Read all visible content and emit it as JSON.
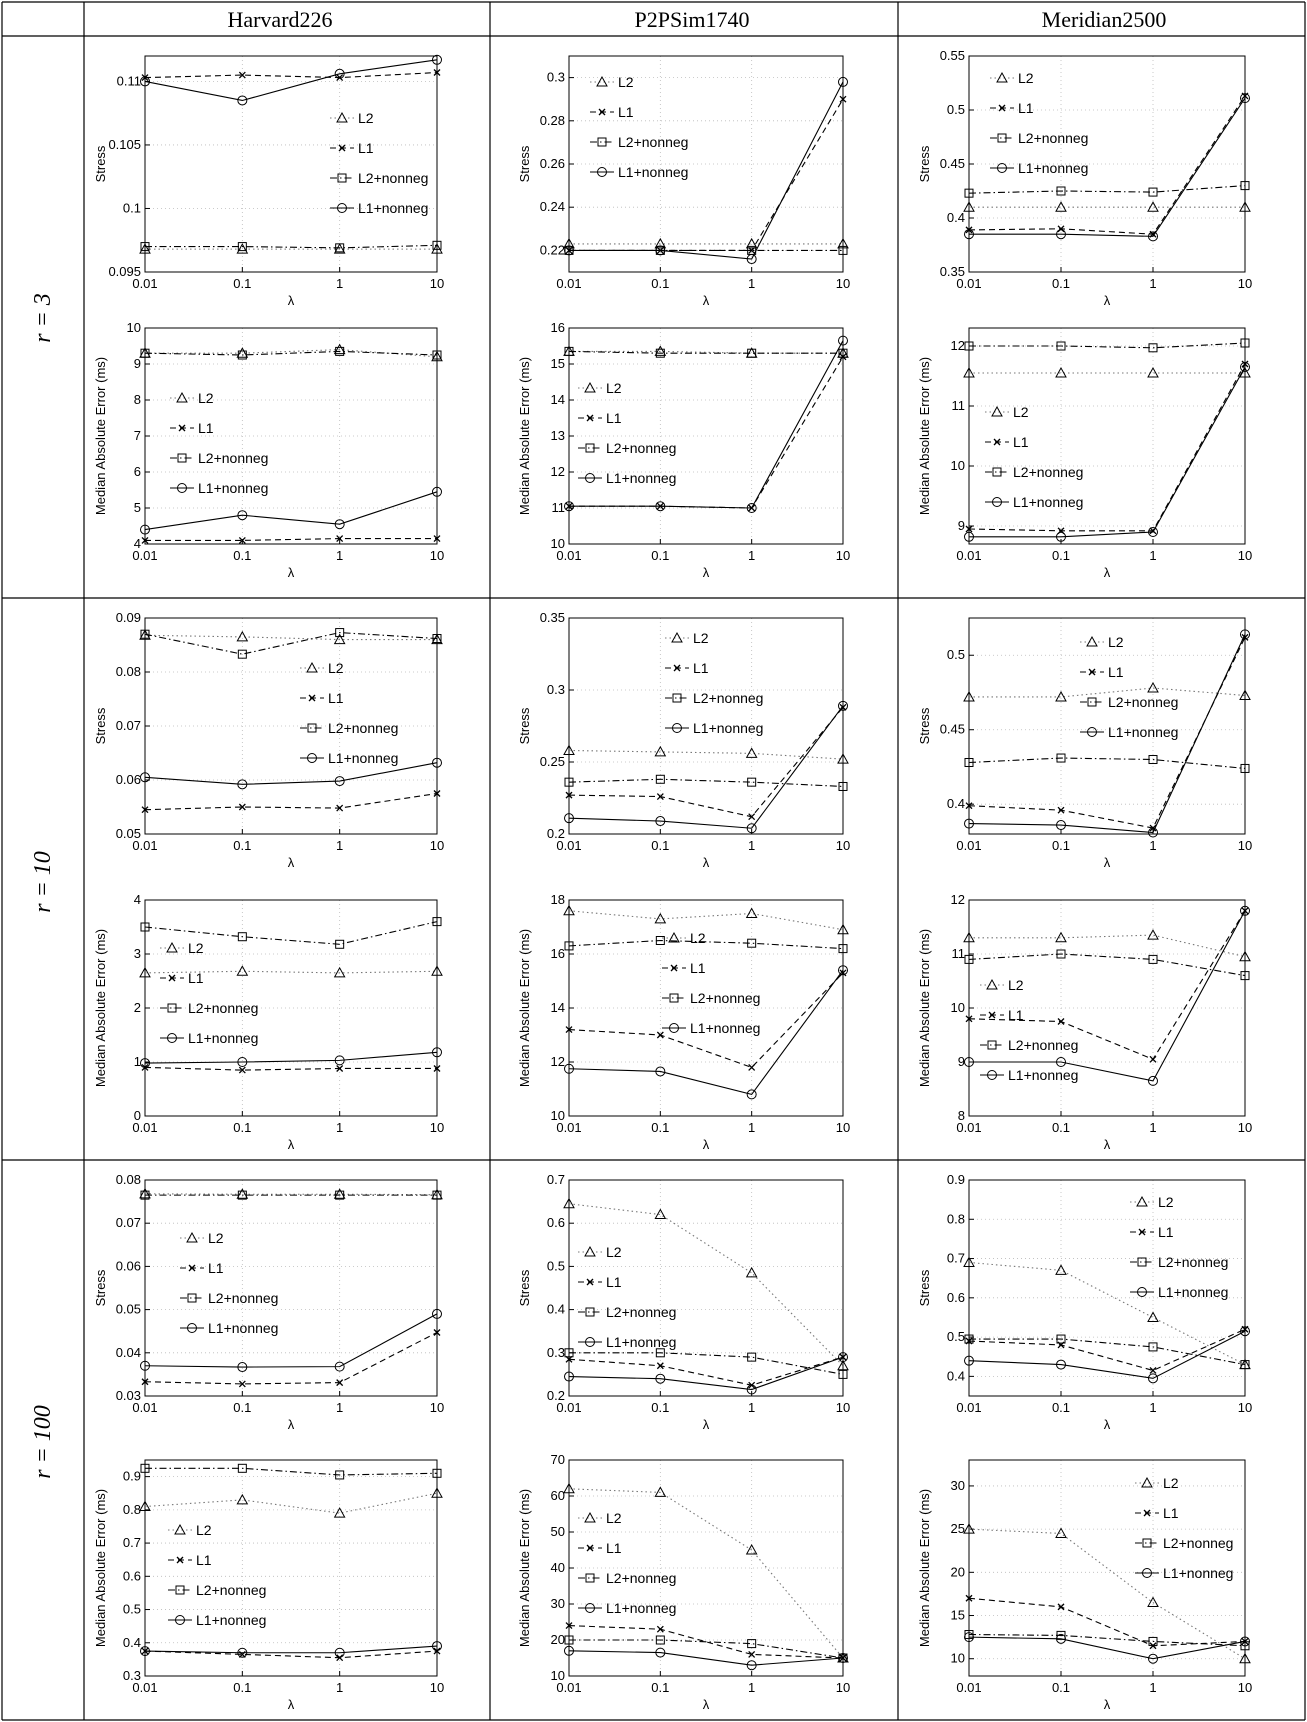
{
  "table": {
    "columns": [
      "Harvard226",
      "P2PSim1740",
      "Meridian2500"
    ],
    "rows": [
      "r = 3",
      "r = 10",
      "r = 100"
    ]
  },
  "legend_labels": [
    "L2",
    "L1",
    "L2+nonneg",
    "L1+nonneg"
  ],
  "xlabel": "λ",
  "x_ticks": [
    "0.01",
    "0.1",
    "1",
    "10"
  ],
  "chart_data": [
    {
      "type": "line",
      "title": "",
      "xlabel": "λ",
      "ylabel": "Stress",
      "xscale": "log",
      "x": [
        0.01,
        0.1,
        1,
        10
      ],
      "ylim": [
        0.095,
        0.112
      ],
      "yticks": [
        0.095,
        0.1,
        0.105,
        0.11
      ],
      "series": [
        {
          "name": "L2",
          "values": [
            0.0968,
            0.0968,
            0.0968,
            0.0968
          ]
        },
        {
          "name": "L1",
          "values": [
            0.1103,
            0.1105,
            0.1103,
            0.1107
          ]
        },
        {
          "name": "L2+nonneg",
          "values": [
            0.097,
            0.097,
            0.0969,
            0.0971
          ]
        },
        {
          "name": "L1+nonneg",
          "values": [
            0.11,
            0.1085,
            0.1106,
            0.1117
          ]
        }
      ]
    },
    {
      "type": "line",
      "title": "",
      "xlabel": "λ",
      "ylabel": "Stress",
      "xscale": "log",
      "x": [
        0.01,
        0.1,
        1,
        10
      ],
      "ylim": [
        0.21,
        0.31
      ],
      "yticks": [
        0.22,
        0.24,
        0.26,
        0.28,
        0.3
      ],
      "series": [
        {
          "name": "L2",
          "values": [
            0.223,
            0.223,
            0.223,
            0.223
          ]
        },
        {
          "name": "L1",
          "values": [
            0.22,
            0.22,
            0.22,
            0.29
          ]
        },
        {
          "name": "L2+nonneg",
          "values": [
            0.22,
            0.22,
            0.22,
            0.22
          ]
        },
        {
          "name": "L1+nonneg",
          "values": [
            0.22,
            0.22,
            0.216,
            0.298
          ]
        }
      ]
    },
    {
      "type": "line",
      "title": "",
      "xlabel": "λ",
      "ylabel": "Stress",
      "xscale": "log",
      "x": [
        0.01,
        0.1,
        1,
        10
      ],
      "ylim": [
        0.35,
        0.55
      ],
      "yticks": [
        0.35,
        0.4,
        0.45,
        0.5,
        0.55
      ],
      "series": [
        {
          "name": "L2",
          "values": [
            0.41,
            0.41,
            0.41,
            0.41
          ]
        },
        {
          "name": "L1",
          "values": [
            0.389,
            0.39,
            0.385,
            0.513
          ]
        },
        {
          "name": "L2+nonneg",
          "values": [
            0.423,
            0.425,
            0.424,
            0.43
          ]
        },
        {
          "name": "L1+nonneg",
          "values": [
            0.385,
            0.385,
            0.383,
            0.511
          ]
        }
      ]
    },
    {
      "type": "line",
      "title": "",
      "xlabel": "λ",
      "ylabel": "Median Absolute Error (ms)",
      "xscale": "log",
      "x": [
        0.01,
        0.1,
        1,
        10
      ],
      "ylim": [
        4,
        10
      ],
      "yticks": [
        4,
        5,
        6,
        7,
        8,
        9,
        10
      ],
      "series": [
        {
          "name": "L2",
          "values": [
            9.3,
            9.3,
            9.4,
            9.2
          ]
        },
        {
          "name": "L1",
          "values": [
            4.1,
            4.1,
            4.15,
            4.15
          ]
        },
        {
          "name": "L2+nonneg",
          "values": [
            9.3,
            9.25,
            9.35,
            9.25
          ]
        },
        {
          "name": "L1+nonneg",
          "values": [
            4.4,
            4.8,
            4.55,
            5.45
          ]
        }
      ]
    },
    {
      "type": "line",
      "title": "",
      "xlabel": "λ",
      "ylabel": "Median Absolute Error (ms)",
      "xscale": "log",
      "x": [
        0.01,
        0.1,
        1,
        10
      ],
      "ylim": [
        10,
        16
      ],
      "yticks": [
        10,
        11,
        12,
        13,
        14,
        15,
        16
      ],
      "series": [
        {
          "name": "L2",
          "values": [
            15.35,
            15.35,
            15.3,
            15.3
          ]
        },
        {
          "name": "L1",
          "values": [
            11.05,
            11.05,
            11.0,
            15.2
          ]
        },
        {
          "name": "L2+nonneg",
          "values": [
            15.35,
            15.3,
            15.3,
            15.3
          ]
        },
        {
          "name": "L1+nonneg",
          "values": [
            11.05,
            11.05,
            11.0,
            15.65
          ]
        }
      ]
    },
    {
      "type": "line",
      "title": "",
      "xlabel": "λ",
      "ylabel": "Median Absolute Error (ms)",
      "xscale": "log",
      "x": [
        0.01,
        0.1,
        1,
        10
      ],
      "ylim": [
        8.7,
        12.3
      ],
      "yticks": [
        9,
        10,
        11,
        12
      ],
      "series": [
        {
          "name": "L2",
          "values": [
            11.55,
            11.55,
            11.55,
            11.55
          ]
        },
        {
          "name": "L1",
          "values": [
            8.95,
            8.92,
            8.92,
            11.7
          ]
        },
        {
          "name": "L2+nonneg",
          "values": [
            12.0,
            12.0,
            11.97,
            12.05
          ]
        },
        {
          "name": "L1+nonneg",
          "values": [
            8.82,
            8.82,
            8.9,
            11.65
          ]
        }
      ]
    },
    {
      "type": "line",
      "title": "",
      "xlabel": "λ",
      "ylabel": "Stress",
      "xscale": "log",
      "x": [
        0.01,
        0.1,
        1,
        10
      ],
      "ylim": [
        0.05,
        0.09
      ],
      "yticks": [
        0.05,
        0.06,
        0.07,
        0.08,
        0.09
      ],
      "series": [
        {
          "name": "L2",
          "values": [
            0.0868,
            0.0865,
            0.086,
            0.086
          ]
        },
        {
          "name": "L1",
          "values": [
            0.0545,
            0.055,
            0.0548,
            0.0575
          ]
        },
        {
          "name": "L2+nonneg",
          "values": [
            0.087,
            0.0833,
            0.0873,
            0.0862
          ]
        },
        {
          "name": "L1+nonneg",
          "values": [
            0.0605,
            0.0592,
            0.0598,
            0.0632
          ]
        }
      ]
    },
    {
      "type": "line",
      "title": "",
      "xlabel": "λ",
      "ylabel": "Stress",
      "xscale": "log",
      "x": [
        0.01,
        0.1,
        1,
        10
      ],
      "ylim": [
        0.2,
        0.35
      ],
      "yticks": [
        0.2,
        0.25,
        0.3,
        0.35
      ],
      "series": [
        {
          "name": "L2",
          "values": [
            0.258,
            0.257,
            0.256,
            0.252
          ]
        },
        {
          "name": "L1",
          "values": [
            0.227,
            0.226,
            0.212,
            0.288
          ]
        },
        {
          "name": "L2+nonneg",
          "values": [
            0.236,
            0.238,
            0.236,
            0.233
          ]
        },
        {
          "name": "L1+nonneg",
          "values": [
            0.211,
            0.209,
            0.204,
            0.289
          ]
        }
      ]
    },
    {
      "type": "line",
      "title": "",
      "xlabel": "λ",
      "ylabel": "Stress",
      "xscale": "log",
      "x": [
        0.01,
        0.1,
        1,
        10
      ],
      "ylim": [
        0.38,
        0.525
      ],
      "yticks": [
        0.4,
        0.45,
        0.5
      ],
      "series": [
        {
          "name": "L2",
          "values": [
            0.472,
            0.472,
            0.478,
            0.473
          ]
        },
        {
          "name": "L1",
          "values": [
            0.399,
            0.396,
            0.384,
            0.512
          ]
        },
        {
          "name": "L2+nonneg",
          "values": [
            0.428,
            0.431,
            0.43,
            0.424
          ]
        },
        {
          "name": "L1+nonneg",
          "values": [
            0.387,
            0.386,
            0.381,
            0.514
          ]
        }
      ]
    },
    {
      "type": "line",
      "title": "",
      "xlabel": "λ",
      "ylabel": "Median Absolute Error (ms)",
      "xscale": "log",
      "x": [
        0.01,
        0.1,
        1,
        10
      ],
      "ylim": [
        0,
        4
      ],
      "yticks": [
        0,
        1,
        2,
        3,
        4
      ],
      "series": [
        {
          "name": "L2",
          "values": [
            2.65,
            2.68,
            2.65,
            2.68
          ]
        },
        {
          "name": "L1",
          "values": [
            0.9,
            0.85,
            0.88,
            0.88
          ]
        },
        {
          "name": "L2+nonneg",
          "values": [
            3.5,
            3.32,
            3.18,
            3.6
          ]
        },
        {
          "name": "L1+nonneg",
          "values": [
            0.98,
            1.0,
            1.03,
            1.18
          ]
        }
      ]
    },
    {
      "type": "line",
      "title": "",
      "xlabel": "λ",
      "ylabel": "Median Absolute Error (ms)",
      "xscale": "log",
      "x": [
        0.01,
        0.1,
        1,
        10
      ],
      "ylim": [
        10,
        18
      ],
      "yticks": [
        10,
        12,
        14,
        16,
        18
      ],
      "series": [
        {
          "name": "L2",
          "values": [
            17.6,
            17.3,
            17.5,
            16.9
          ]
        },
        {
          "name": "L1",
          "values": [
            13.2,
            13.0,
            11.8,
            15.3
          ]
        },
        {
          "name": "L2+nonneg",
          "values": [
            16.3,
            16.5,
            16.4,
            16.2
          ]
        },
        {
          "name": "L1+nonneg",
          "values": [
            11.75,
            11.65,
            10.8,
            15.4
          ]
        }
      ]
    },
    {
      "type": "line",
      "title": "",
      "xlabel": "λ",
      "ylabel": "Median Absolute Error (ms)",
      "xscale": "log",
      "x": [
        0.01,
        0.1,
        1,
        10
      ],
      "ylim": [
        8,
        12
      ],
      "yticks": [
        8,
        9,
        10,
        11,
        12
      ],
      "series": [
        {
          "name": "L2",
          "values": [
            11.3,
            11.3,
            11.35,
            10.95
          ]
        },
        {
          "name": "L1",
          "values": [
            9.8,
            9.75,
            9.05,
            11.8
          ]
        },
        {
          "name": "L2+nonneg",
          "values": [
            10.9,
            11.0,
            10.9,
            10.6
          ]
        },
        {
          "name": "L1+nonneg",
          "values": [
            9.0,
            9.0,
            8.65,
            11.8
          ]
        }
      ]
    },
    {
      "type": "line",
      "title": "",
      "xlabel": "λ",
      "ylabel": "Stress",
      "xscale": "log",
      "x": [
        0.01,
        0.1,
        1,
        10
      ],
      "ylim": [
        0.03,
        0.08
      ],
      "yticks": [
        0.03,
        0.04,
        0.05,
        0.06,
        0.07,
        0.08
      ],
      "series": [
        {
          "name": "L2",
          "values": [
            0.0768,
            0.0767,
            0.0767,
            0.0766
          ]
        },
        {
          "name": "L1",
          "values": [
            0.0333,
            0.0328,
            0.0331,
            0.0447
          ]
        },
        {
          "name": "L2+nonneg",
          "values": [
            0.0765,
            0.0765,
            0.0765,
            0.0765
          ]
        },
        {
          "name": "L1+nonneg",
          "values": [
            0.037,
            0.0367,
            0.0368,
            0.049
          ]
        }
      ]
    },
    {
      "type": "line",
      "title": "",
      "xlabel": "λ",
      "ylabel": "Stress",
      "xscale": "log",
      "x": [
        0.01,
        0.1,
        1,
        10
      ],
      "ylim": [
        0.2,
        0.7
      ],
      "yticks": [
        0.2,
        0.3,
        0.4,
        0.5,
        0.6,
        0.7
      ],
      "series": [
        {
          "name": "L2",
          "values": [
            0.645,
            0.62,
            0.485,
            0.27
          ]
        },
        {
          "name": "L1",
          "values": [
            0.285,
            0.27,
            0.225,
            0.29
          ]
        },
        {
          "name": "L2+nonneg",
          "values": [
            0.3,
            0.3,
            0.29,
            0.25
          ]
        },
        {
          "name": "L1+nonneg",
          "values": [
            0.245,
            0.24,
            0.215,
            0.29
          ]
        }
      ]
    },
    {
      "type": "line",
      "title": "",
      "xlabel": "λ",
      "ylabel": "Stress",
      "xscale": "log",
      "x": [
        0.01,
        0.1,
        1,
        10
      ],
      "ylim": [
        0.35,
        0.9
      ],
      "yticks": [
        0.4,
        0.5,
        0.6,
        0.7,
        0.8,
        0.9
      ],
      "series": [
        {
          "name": "L2",
          "values": [
            0.69,
            0.67,
            0.55,
            0.43
          ]
        },
        {
          "name": "L1",
          "values": [
            0.49,
            0.48,
            0.415,
            0.52
          ]
        },
        {
          "name": "L2+nonneg",
          "values": [
            0.495,
            0.495,
            0.475,
            0.43
          ]
        },
        {
          "name": "L1+nonneg",
          "values": [
            0.44,
            0.43,
            0.395,
            0.515
          ]
        }
      ]
    },
    {
      "type": "line",
      "title": "",
      "xlabel": "λ",
      "ylabel": "Median Absolute Error (ms)",
      "xscale": "log",
      "x": [
        0.01,
        0.1,
        1,
        10
      ],
      "ylim": [
        0.3,
        0.95
      ],
      "yticks": [
        0.3,
        0.4,
        0.5,
        0.6,
        0.7,
        0.8,
        0.9
      ],
      "series": [
        {
          "name": "L2",
          "values": [
            0.81,
            0.83,
            0.79,
            0.85
          ]
        },
        {
          "name": "L1",
          "values": [
            0.375,
            0.365,
            0.355,
            0.375
          ]
        },
        {
          "name": "L2+nonneg",
          "values": [
            0.925,
            0.925,
            0.905,
            0.91
          ]
        },
        {
          "name": "L1+nonneg",
          "values": [
            0.375,
            0.37,
            0.37,
            0.39
          ]
        }
      ]
    },
    {
      "type": "line",
      "title": "",
      "xlabel": "λ",
      "ylabel": "Median Absolute Error (ms)",
      "xscale": "log",
      "x": [
        0.01,
        0.1,
        1,
        10
      ],
      "ylim": [
        10,
        70
      ],
      "yticks": [
        10,
        20,
        30,
        40,
        50,
        60,
        70
      ],
      "series": [
        {
          "name": "L2",
          "values": [
            62,
            61,
            45,
            15
          ]
        },
        {
          "name": "L1",
          "values": [
            24,
            23,
            16,
            15
          ]
        },
        {
          "name": "L2+nonneg",
          "values": [
            20,
            20,
            19,
            15
          ]
        },
        {
          "name": "L1+nonneg",
          "values": [
            17,
            16.5,
            13,
            15
          ]
        }
      ]
    },
    {
      "type": "line",
      "title": "",
      "xlabel": "λ",
      "ylabel": "Median Absolute Error (ms)",
      "xscale": "log",
      "x": [
        0.01,
        0.1,
        1,
        10
      ],
      "ylim": [
        8,
        33
      ],
      "yticks": [
        10,
        15,
        20,
        25,
        30
      ],
      "series": [
        {
          "name": "L2",
          "values": [
            25,
            24.5,
            16.5,
            10
          ]
        },
        {
          "name": "L1",
          "values": [
            17,
            16,
            11.5,
            12
          ]
        },
        {
          "name": "L2+nonneg",
          "values": [
            12.8,
            12.7,
            12,
            11.5
          ]
        },
        {
          "name": "L1+nonneg",
          "values": [
            12.5,
            12.3,
            10,
            12
          ]
        }
      ]
    }
  ]
}
